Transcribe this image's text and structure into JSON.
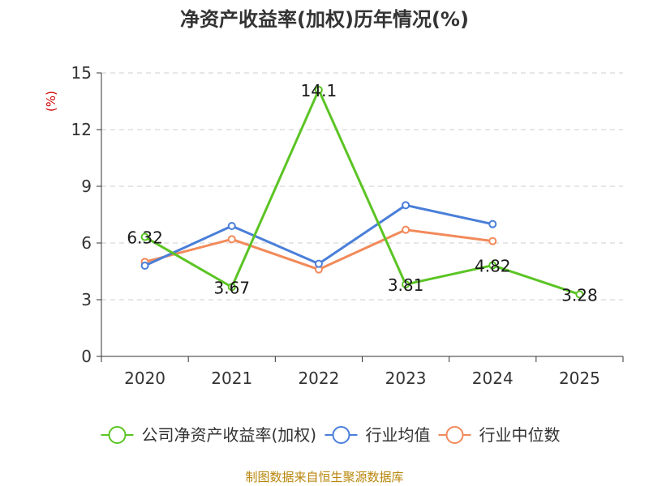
{
  "chart_data": {
    "type": "line",
    "title": "净资产收益率(加权)历年情况(%)",
    "ylabel": "(%)",
    "categories": [
      "2020",
      "2021",
      "2022",
      "2023",
      "2024",
      "2025"
    ],
    "ylim": [
      0,
      15
    ],
    "yticks": [
      0,
      3,
      6,
      9,
      12,
      15
    ],
    "grid": true,
    "legend_position": "bottom",
    "series": [
      {
        "name": "公司净资产收益率(加权)",
        "color": "#5bc424",
        "values": [
          6.32,
          3.67,
          14.1,
          3.81,
          4.82,
          3.28
        ],
        "labels": [
          "6.32",
          "3.67",
          "14.1",
          "3.81",
          "4.82",
          "3.28"
        ]
      },
      {
        "name": "行业均值",
        "color": "#4a7fd9",
        "values": [
          4.8,
          6.9,
          4.9,
          8.0,
          7.0,
          null
        ]
      },
      {
        "name": "行业中位数",
        "color": "#f28a5a",
        "values": [
          5.0,
          6.2,
          4.6,
          6.7,
          6.1,
          null
        ]
      }
    ]
  },
  "footer": {
    "source": "制图数据来自恒生聚源数据库"
  }
}
